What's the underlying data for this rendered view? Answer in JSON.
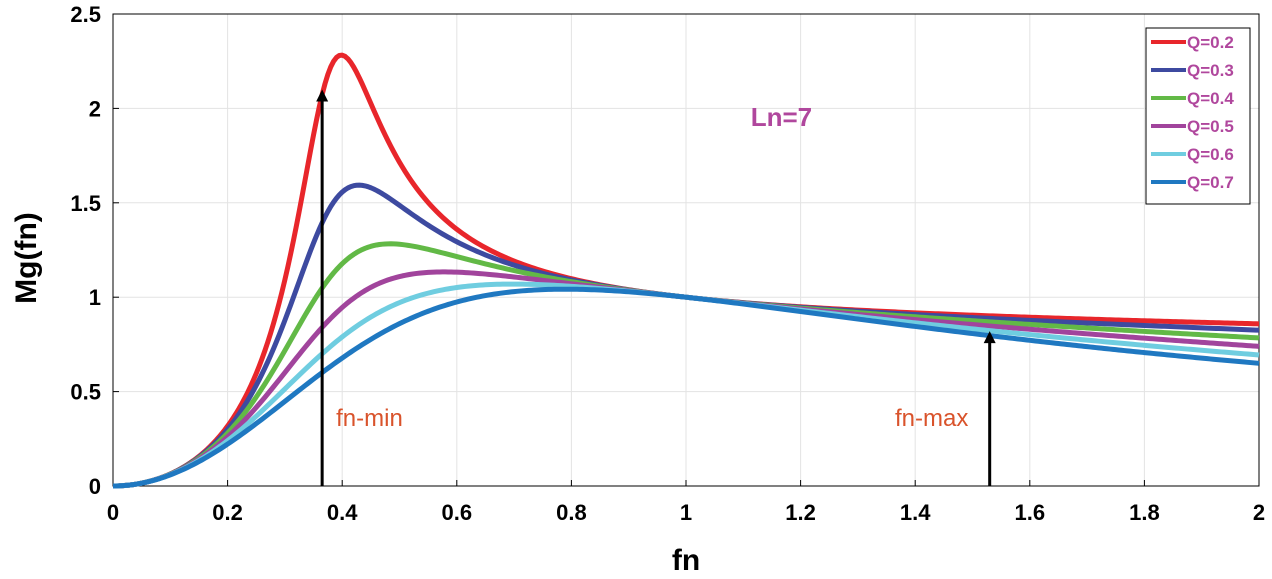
{
  "chart_data": {
    "type": "line",
    "title": "",
    "xlabel": "fn",
    "ylabel": "Mg(fn)",
    "xlim": [
      0,
      2
    ],
    "ylim": [
      0,
      2.5
    ],
    "grid": true,
    "legend_position": "top-right",
    "x_ticks": [
      "0",
      "0.2",
      "0.4",
      "0.6",
      "0.8",
      "1",
      "1.2",
      "1.4",
      "1.6",
      "1.8",
      "2"
    ],
    "y_ticks": [
      "0",
      "0.5",
      "1",
      "1.5",
      "2",
      "2.5"
    ],
    "x_tick_values": [
      0,
      0.2,
      0.4,
      0.6,
      0.8,
      1,
      1.2,
      1.4,
      1.6,
      1.8,
      2
    ],
    "y_tick_values": [
      0,
      0.5,
      1,
      1.5,
      2,
      2.5
    ],
    "Ln": 7,
    "series": [
      {
        "name": "Q=0.2",
        "Q": 0.2,
        "color": "#e8262b"
      },
      {
        "name": "Q=0.3",
        "Q": 0.3,
        "color": "#3d4aa0"
      },
      {
        "name": "Q=0.4",
        "Q": 0.4,
        "color": "#62b946"
      },
      {
        "name": "Q=0.5",
        "Q": 0.5,
        "color": "#a1449c"
      },
      {
        "name": "Q=0.6",
        "Q": 0.6,
        "color": "#6fcde0"
      },
      {
        "name": "Q=0.7",
        "Q": 0.7,
        "color": "#1f78c1"
      }
    ],
    "annotations": [
      {
        "text": "Ln=7",
        "x": 1.17,
        "y": 1.97,
        "color": "#b0479d"
      },
      {
        "text": "fn-min",
        "x": 0.365,
        "y": 0.36,
        "color": "#d9532b"
      },
      {
        "text": "fn-max",
        "x": 1.53,
        "y": 0.36,
        "color": "#d9532b"
      }
    ],
    "arrows": [
      {
        "name": "fn-min-arrow",
        "x": 0.365,
        "y_from": 0,
        "y_to": 2.1
      },
      {
        "name": "fn-max-arrow",
        "x": 1.53,
        "y_from": 0,
        "y_to": 0.82
      }
    ]
  }
}
